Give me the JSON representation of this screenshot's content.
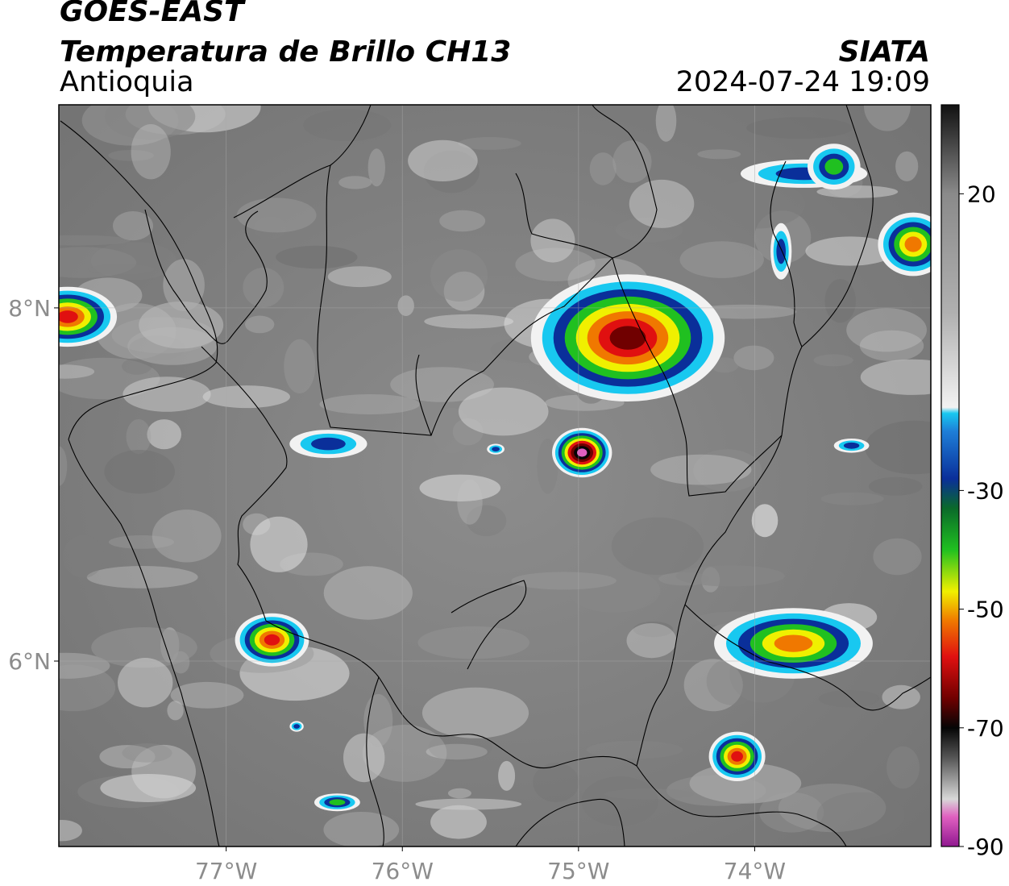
{
  "header": {
    "satellite": "GOES-EAST",
    "product": "Temperatura de Brillo CH13",
    "region": "Antioquia",
    "agency": "SIATA",
    "datetime": "2024-07-24 19:09"
  },
  "map": {
    "lon_range": [
      -77.95,
      -73.0
    ],
    "lat_range": [
      4.95,
      9.15
    ],
    "lon_ticks": [
      {
        "value": -77,
        "label": "77°W"
      },
      {
        "value": -76,
        "label": "76°W"
      },
      {
        "value": -75,
        "label": "75°W"
      },
      {
        "value": -74,
        "label": "74°W"
      }
    ],
    "lat_ticks": [
      {
        "value": 8,
        "label": "8°N"
      },
      {
        "value": 6,
        "label": "6°N"
      }
    ],
    "storm_cells": [
      {
        "name": "cell-northwest-coast",
        "lon": -77.9,
        "lat": 7.95,
        "rx": 0.28,
        "ry": 0.17,
        "core": "red"
      },
      {
        "name": "cell-main-central-north",
        "lon": -74.72,
        "lat": 7.83,
        "rx": 0.55,
        "ry": 0.36,
        "core": "darkred"
      },
      {
        "name": "cell-overshooting-top",
        "lon": -74.98,
        "lat": 7.18,
        "rx": 0.17,
        "ry": 0.14,
        "core": "black"
      },
      {
        "name": "cell-west-small",
        "lon": -76.42,
        "lat": 7.23,
        "rx": 0.22,
        "ry": 0.08,
        "core": "blue"
      },
      {
        "name": "cell-tiny-1",
        "lon": -75.47,
        "lat": 7.2,
        "rx": 0.05,
        "ry": 0.03,
        "core": "blue"
      },
      {
        "name": "cell-northeast-arm",
        "lon": -73.72,
        "lat": 8.76,
        "rx": 0.36,
        "ry": 0.08,
        "core": "blue"
      },
      {
        "name": "cell-northeast-green",
        "lon": -73.55,
        "lat": 8.8,
        "rx": 0.15,
        "ry": 0.13,
        "core": "green"
      },
      {
        "name": "cell-east-edge",
        "lon": -73.1,
        "lat": 8.36,
        "rx": 0.2,
        "ry": 0.18,
        "core": "orange"
      },
      {
        "name": "cell-streak-east",
        "lon": -73.85,
        "lat": 8.32,
        "rx": 0.06,
        "ry": 0.16,
        "core": "blue"
      },
      {
        "name": "cell-southwest",
        "lon": -76.74,
        "lat": 6.12,
        "rx": 0.21,
        "ry": 0.15,
        "core": "red"
      },
      {
        "name": "cell-east-large",
        "lon": -73.78,
        "lat": 6.1,
        "rx": 0.45,
        "ry": 0.2,
        "core": "orange"
      },
      {
        "name": "cell-southeast",
        "lon": -74.1,
        "lat": 5.46,
        "rx": 0.16,
        "ry": 0.14,
        "core": "red"
      },
      {
        "name": "cell-far-east-small",
        "lon": -73.45,
        "lat": 7.22,
        "rx": 0.1,
        "ry": 0.04,
        "core": "blue"
      },
      {
        "name": "cell-south-small-1",
        "lon": -76.6,
        "lat": 5.63,
        "rx": 0.04,
        "ry": 0.03,
        "core": "blue"
      },
      {
        "name": "cell-south-small-2",
        "lon": -76.37,
        "lat": 5.2,
        "rx": 0.13,
        "ry": 0.05,
        "core": "green"
      }
    ]
  },
  "colorbar": {
    "vmin": -90,
    "vmax": 35,
    "ticks": [
      {
        "value": 20,
        "label": "20"
      },
      {
        "value": -30,
        "label": "-30"
      },
      {
        "value": -50,
        "label": "-50"
      },
      {
        "value": -70,
        "label": "-70"
      },
      {
        "value": -90,
        "label": "-90"
      }
    ],
    "colors": {
      "warm_black": "#111111",
      "gray": "#8a8a8a",
      "white": "#f2f2f2",
      "cyan": "#18c8f0",
      "blue": "#0a2f9a",
      "green": "#20c020",
      "yellow": "#f0f000",
      "orange": "#f07800",
      "red": "#e01010",
      "dark_red": "#700000",
      "black": "#050505",
      "pink": "#e060c0",
      "purple": "#901890"
    }
  }
}
